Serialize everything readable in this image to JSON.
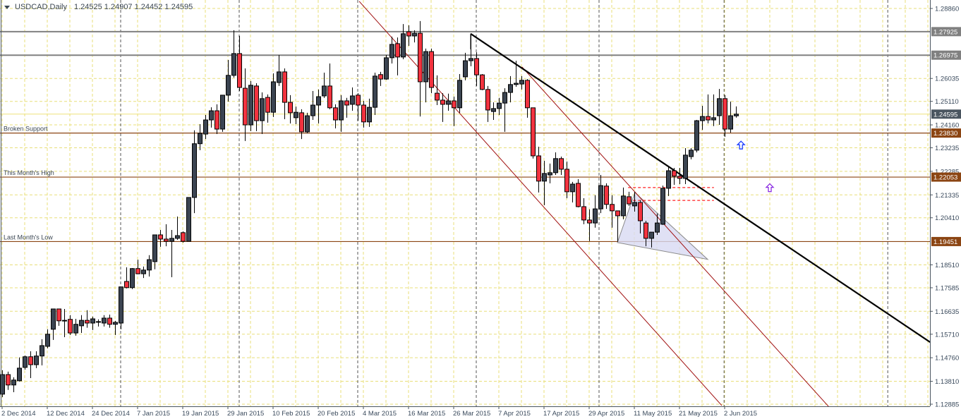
{
  "header": {
    "symbol": "USDCAD,Daily",
    "ohlc": "1.24525 1.24907 1.24452 1.24595"
  },
  "chart_data": {
    "type": "candlestick",
    "symbol": "USDCAD",
    "timeframe": "Daily",
    "ylim": [
      1.12885,
      1.2886
    ],
    "grid": true,
    "colors": {
      "bull": "#3b4451",
      "bear": "#f2333f",
      "grid": "#e8df7a",
      "trend": "#000000",
      "channel": "#a01010",
      "support": "#8b4513",
      "resistance": "#808080",
      "current": "#4a5560"
    },
    "price_ticks": [
      "1.28860",
      "1.26035",
      "1.25110",
      "1.24160",
      "1.23235",
      "1.22285",
      "1.21335",
      "1.20410",
      "1.18510",
      "1.17585",
      "1.16635",
      "1.15710",
      "1.14760",
      "1.13810",
      "1.12885"
    ],
    "date_ticks": [
      {
        "bar": 0,
        "label": "2 Dec 2014"
      },
      {
        "bar": 8,
        "label": "12 Dec 2014"
      },
      {
        "bar": 16,
        "label": "24 Dec 2014"
      },
      {
        "bar": 24,
        "label": "7 Jan 2015"
      },
      {
        "bar": 32,
        "label": "19 Jan 2015"
      },
      {
        "bar": 40,
        "label": "29 Jan 2015"
      },
      {
        "bar": 48,
        "label": "10 Feb 2015"
      },
      {
        "bar": 56,
        "label": "20 Feb 2015"
      },
      {
        "bar": 64,
        "label": "4 Mar 2015"
      },
      {
        "bar": 72,
        "label": "16 Mar 2015"
      },
      {
        "bar": 80,
        "label": "26 Mar 2015"
      },
      {
        "bar": 88,
        "label": "7 Apr 2015"
      },
      {
        "bar": 96,
        "label": "17 Apr 2015"
      },
      {
        "bar": 104,
        "label": "29 Apr 2015"
      },
      {
        "bar": 112,
        "label": "11 May 2015"
      },
      {
        "bar": 120,
        "label": "21 May 2015"
      },
      {
        "bar": 128,
        "label": "2 Jun 2015"
      }
    ],
    "month_separators": [
      21,
      42,
      63,
      84,
      105.75,
      127.9,
      156.9
    ],
    "candles_ohlc": [
      [
        1.1329,
        1.1426,
        1.1317,
        1.1408
      ],
      [
        1.1408,
        1.142,
        1.1346,
        1.1366
      ],
      [
        1.1366,
        1.1397,
        1.1337,
        1.1386
      ],
      [
        1.1383,
        1.1477,
        1.138,
        1.1434
      ],
      [
        1.1437,
        1.1485,
        1.1428,
        1.148
      ],
      [
        1.148,
        1.1502,
        1.1394,
        1.1448
      ],
      [
        1.1448,
        1.1502,
        1.1434,
        1.1483
      ],
      [
        1.1483,
        1.1551,
        1.1445,
        1.1525
      ],
      [
        1.1522,
        1.1591,
        1.1514,
        1.1571
      ],
      [
        1.1591,
        1.1673,
        1.1548,
        1.1673
      ],
      [
        1.1673,
        1.1673,
        1.1605,
        1.1625
      ],
      [
        1.1627,
        1.1673,
        1.1559,
        1.1627
      ],
      [
        1.1631,
        1.1648,
        1.1568,
        1.1576
      ],
      [
        1.1576,
        1.1633,
        1.1565,
        1.1611
      ],
      [
        1.1605,
        1.1648,
        1.1576,
        1.1627
      ],
      [
        1.1627,
        1.1668,
        1.1597,
        1.1616
      ],
      [
        1.1616,
        1.1642,
        1.1588,
        1.1633
      ],
      [
        1.1622,
        1.1631,
        1.1602,
        1.1622
      ],
      [
        1.1616,
        1.1648,
        1.1602,
        1.1636
      ],
      [
        1.1636,
        1.165,
        1.1597,
        1.1611
      ],
      [
        1.1611,
        1.1625,
        1.1568,
        1.1619
      ],
      [
        1.1616,
        1.1762,
        1.1591,
        1.1762
      ],
      [
        1.1784,
        1.1841,
        1.1756,
        1.1759
      ],
      [
        1.1759,
        1.1838,
        1.1753,
        1.1836
      ],
      [
        1.1836,
        1.1872,
        1.1813,
        1.1815
      ],
      [
        1.1815,
        1.1844,
        1.1798,
        1.183
      ],
      [
        1.183,
        1.189,
        1.1804,
        1.1872
      ],
      [
        1.1864,
        1.1972,
        1.1833,
        1.1972
      ],
      [
        1.1972,
        1.1992,
        1.1924,
        1.1955
      ],
      [
        1.1955,
        1.2015,
        1.1926,
        1.1946
      ],
      [
        1.1946,
        1.1992,
        1.1801,
        1.1958
      ],
      [
        1.1958,
        1.2046,
        1.1952,
        1.1969
      ],
      [
        1.1981,
        1.1986,
        1.1941,
        1.1946
      ],
      [
        1.1946,
        1.2123,
        1.1946,
        1.2123
      ],
      [
        1.2123,
        1.2394,
        1.206,
        1.234
      ],
      [
        1.234,
        1.2419,
        1.2314,
        1.2382
      ],
      [
        1.2379,
        1.2456,
        1.2359,
        1.2436
      ],
      [
        1.2436,
        1.2487,
        1.2405,
        1.2473
      ],
      [
        1.2473,
        1.2499,
        1.2379,
        1.2399
      ],
      [
        1.2399,
        1.2536,
        1.2388,
        1.2536
      ],
      [
        1.2536,
        1.2678,
        1.251,
        1.2616
      ],
      [
        1.2616,
        1.2798,
        1.2607,
        1.2704
      ],
      [
        1.2704,
        1.2775,
        1.2553,
        1.2567
      ],
      [
        1.2564,
        1.2644,
        1.2351,
        1.2416
      ],
      [
        1.2416,
        1.2593,
        1.2391,
        1.2576
      ],
      [
        1.2573,
        1.2584,
        1.2391,
        1.2433
      ],
      [
        1.2433,
        1.2547,
        1.2379,
        1.2522
      ],
      [
        1.2527,
        1.2539,
        1.2425,
        1.2467
      ],
      [
        1.2467,
        1.2624,
        1.2448,
        1.259
      ],
      [
        1.2587,
        1.2698,
        1.2573,
        1.263
      ],
      [
        1.263,
        1.2644,
        1.2439,
        1.2507
      ],
      [
        1.2507,
        1.2536,
        1.2422,
        1.2465
      ],
      [
        1.2445,
        1.249,
        1.2419,
        1.2467
      ],
      [
        1.2465,
        1.2479,
        1.2359,
        1.2388
      ],
      [
        1.2388,
        1.2465,
        1.2382,
        1.2453
      ],
      [
        1.2453,
        1.2553,
        1.2436,
        1.2496
      ],
      [
        1.2496,
        1.2559,
        1.2422,
        1.253
      ],
      [
        1.2533,
        1.2627,
        1.2525,
        1.2573
      ],
      [
        1.2573,
        1.2664,
        1.2479,
        1.2485
      ],
      [
        1.2485,
        1.2499,
        1.2402,
        1.2436
      ],
      [
        1.2436,
        1.2536,
        1.2388,
        1.2513
      ],
      [
        1.2513,
        1.2525,
        1.2445,
        1.2496
      ],
      [
        1.2499,
        1.2567,
        1.2473,
        1.2533
      ],
      [
        1.2536,
        1.2544,
        1.2433,
        1.2496
      ],
      [
        1.2496,
        1.2513,
        1.2405,
        1.2428
      ],
      [
        1.2428,
        1.2522,
        1.2408,
        1.2487
      ],
      [
        1.2487,
        1.2627,
        1.2456,
        1.2613
      ],
      [
        1.2619,
        1.263,
        1.2573,
        1.2601
      ],
      [
        1.2601,
        1.2698,
        1.2598,
        1.2687
      ],
      [
        1.2687,
        1.2772,
        1.2664,
        1.2741
      ],
      [
        1.2744,
        1.2769,
        1.2616,
        1.269
      ],
      [
        1.269,
        1.2823,
        1.2681,
        1.2784
      ],
      [
        1.2792,
        1.2818,
        1.2735,
        1.2775
      ],
      [
        1.2775,
        1.2798,
        1.2749,
        1.2786
      ],
      [
        1.2786,
        1.2835,
        1.245,
        1.259
      ],
      [
        1.259,
        1.2724,
        1.2507,
        1.2712
      ],
      [
        1.2712,
        1.2724,
        1.2544,
        1.2567
      ],
      [
        1.2544,
        1.2616,
        1.2496,
        1.2516
      ],
      [
        1.2516,
        1.2544,
        1.2428,
        1.2499
      ],
      [
        1.2499,
        1.2542,
        1.2473,
        1.2513
      ],
      [
        1.2513,
        1.253,
        1.2411,
        1.2485
      ],
      [
        1.2485,
        1.2621,
        1.2465,
        1.2596
      ],
      [
        1.261,
        1.2707,
        1.2596,
        1.2675
      ],
      [
        1.2675,
        1.2784,
        1.2653,
        1.2684
      ],
      [
        1.2684,
        1.2709,
        1.2573,
        1.2618
      ],
      [
        1.2618,
        1.2621,
        1.2556,
        1.2559
      ],
      [
        1.2559,
        1.2573,
        1.2428,
        1.2476
      ],
      [
        1.247,
        1.2507,
        1.2436,
        1.2482
      ],
      [
        1.2482,
        1.2525,
        1.2456,
        1.2504
      ],
      [
        1.2504,
        1.2564,
        1.2388,
        1.2547
      ],
      [
        1.2547,
        1.2613,
        1.2507,
        1.2579
      ],
      [
        1.2579,
        1.2675,
        1.257,
        1.2584
      ],
      [
        1.2581,
        1.2613,
        1.2559,
        1.2596
      ],
      [
        1.2596,
        1.2601,
        1.2445,
        1.2485
      ],
      [
        1.2485,
        1.2485,
        1.228,
        1.2291
      ],
      [
        1.2291,
        1.2328,
        1.2143,
        1.2189
      ],
      [
        1.2189,
        1.2271,
        1.2092,
        1.222
      ],
      [
        1.2214,
        1.226,
        1.218,
        1.2223
      ],
      [
        1.2223,
        1.2305,
        1.2214,
        1.228
      ],
      [
        1.228,
        1.2288,
        1.2214,
        1.2237
      ],
      [
        1.2237,
        1.2268,
        1.212,
        1.2146
      ],
      [
        1.2146,
        1.2186,
        1.2103,
        1.2177
      ],
      [
        1.218,
        1.2197,
        1.2083,
        1.2086
      ],
      [
        1.2086,
        1.212,
        1.2015,
        1.2032
      ],
      [
        1.2032,
        1.2075,
        1.1947,
        1.202
      ],
      [
        1.202,
        1.2132,
        1.2001,
        1.2077
      ],
      [
        1.2077,
        1.2214,
        1.206,
        1.2171
      ],
      [
        1.2169,
        1.218,
        1.2077,
        1.2095
      ],
      [
        1.2095,
        1.2132,
        1.2001,
        1.2069
      ],
      [
        1.2069,
        1.2069,
        1.1944,
        1.2049
      ],
      [
        1.2049,
        1.2163,
        1.2035,
        1.2129
      ],
      [
        1.2126,
        1.2146,
        1.2089,
        1.2097
      ],
      [
        1.2089,
        1.2146,
        1.2066,
        1.2103
      ],
      [
        1.2103,
        1.2112,
        1.1978,
        1.2029
      ],
      [
        1.202,
        1.2029,
        1.1926,
        1.1958
      ],
      [
        1.1958,
        1.1981,
        1.1921,
        1.1983
      ],
      [
        1.1983,
        1.2058,
        1.1972,
        1.202
      ],
      [
        1.2015,
        1.2171,
        1.2012,
        1.216
      ],
      [
        1.216,
        1.2245,
        1.2129,
        1.2231
      ],
      [
        1.2231,
        1.2242,
        1.2174,
        1.2209
      ],
      [
        1.2209,
        1.2242,
        1.2177,
        1.22
      ],
      [
        1.22,
        1.2322,
        1.2177,
        1.2294
      ],
      [
        1.2288,
        1.2322,
        1.2277,
        1.2314
      ],
      [
        1.2314,
        1.2436,
        1.2305,
        1.2433
      ],
      [
        1.2433,
        1.2493,
        1.2396,
        1.245
      ],
      [
        1.245,
        1.2539,
        1.2422,
        1.2436
      ],
      [
        1.2436,
        1.2539,
        1.2411,
        1.2445
      ],
      [
        1.2453,
        1.2561,
        1.2416,
        1.2522
      ],
      [
        1.2522,
        1.2536,
        1.2368,
        1.2399
      ],
      [
        1.2399,
        1.251,
        1.2385,
        1.2453
      ],
      [
        1.24525,
        1.24907,
        1.24452,
        1.24595
      ]
    ],
    "horizontal_levels": [
      {
        "price": 1.27925,
        "label": "",
        "tag": "1.27925",
        "kind": "resistance"
      },
      {
        "price": 1.26975,
        "label": "",
        "tag": "1.26975",
        "kind": "resistance"
      },
      {
        "price": 1.2383,
        "label": "Broken Support",
        "tag": "1.23830",
        "kind": "support"
      },
      {
        "price": 1.22053,
        "label": "This Month's High",
        "tag": "1.22053",
        "kind": "support"
      },
      {
        "price": 1.19451,
        "label": "Last Month's Low",
        "tag": "1.19451",
        "kind": "support"
      }
    ],
    "current_price": {
      "price": 1.24595,
      "tag": "1.24595"
    },
    "trendline": {
      "from": {
        "bar": 83,
        "price": 1.2784
      },
      "to": {
        "bar": 164.4,
        "price": 1.1539
      }
    },
    "channel_lines": [
      {
        "from": {
          "bar": 63.25,
          "price": 1.2915
        },
        "to": {
          "bar": 127.5,
          "price": 1.1283
        }
      },
      {
        "from": {
          "bar": 92.1,
          "price": 1.265
        },
        "to": {
          "bar": 146.5,
          "price": 1.1277
        }
      }
    ],
    "triangle": [
      {
        "bar": 109,
        "price": 1.1941
      },
      {
        "bar": 112.1,
        "price": 1.2143
      },
      {
        "bar": 125,
        "price": 1.1873
      }
    ],
    "dashed_levels": [
      {
        "price": 1.2163,
        "from_bar": 110.9,
        "to_bar": 126.1
      },
      {
        "price": 1.2111,
        "from_bar": 110.9,
        "to_bar": 126.1
      }
    ],
    "arrows": [
      {
        "bar": 130.9,
        "price": 1.2333,
        "color": "#1a3cff",
        "icon": "up-arrow-icon"
      },
      {
        "bar": 136,
        "price": 1.2161,
        "color": "#8a2be2",
        "icon": "up-arrow-icon"
      }
    ]
  }
}
